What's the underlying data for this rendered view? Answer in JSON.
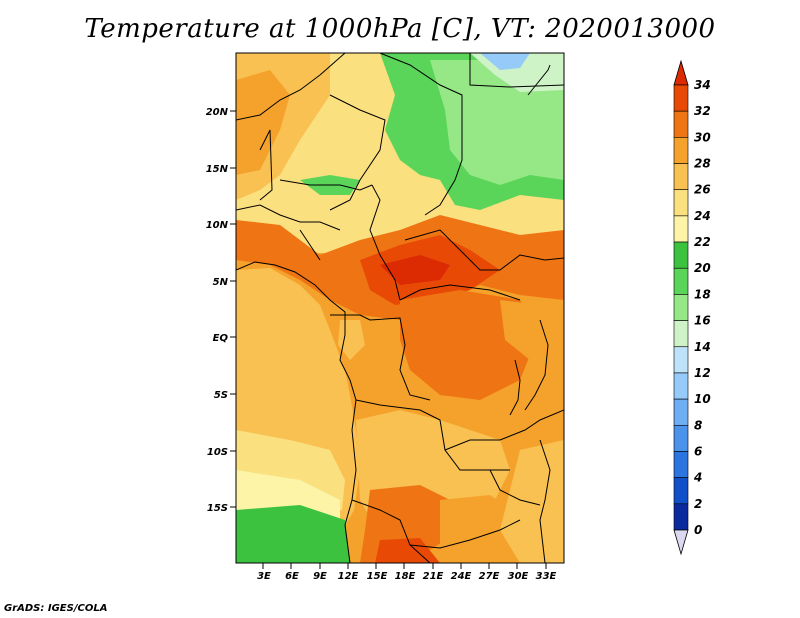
{
  "title": "Temperature at 1000hPa [C], VT: 2020013000",
  "credit": "GrADS: IGES/COLA",
  "map": {
    "lat_ticks": [
      "20N",
      "15N",
      "10N",
      "5N",
      "EQ",
      "5S",
      "10S",
      "15S"
    ],
    "lon_ticks": [
      "3E",
      "6E",
      "9E",
      "12E",
      "15E",
      "18E",
      "21E",
      "24E",
      "27E",
      "30E",
      "33E"
    ]
  },
  "colorbar": {
    "labels": [
      "0",
      "2",
      "4",
      "6",
      "8",
      "10",
      "12",
      "14",
      "16",
      "18",
      "20",
      "22",
      "24",
      "26",
      "28",
      "30",
      "32",
      "34"
    ],
    "colors": [
      "#0a0a6e",
      "#0b2aa0",
      "#1150c8",
      "#2c74df",
      "#4a92ea",
      "#6eaef3",
      "#96caf8",
      "#bfe2fb",
      "#cdf3c6",
      "#96e887",
      "#5bd45a",
      "#3cc23f",
      "#fdf4a8",
      "#fbe07f",
      "#f8c152",
      "#f5a22c",
      "#ef7413",
      "#e84a06",
      "#dc2a02"
    ]
  }
}
